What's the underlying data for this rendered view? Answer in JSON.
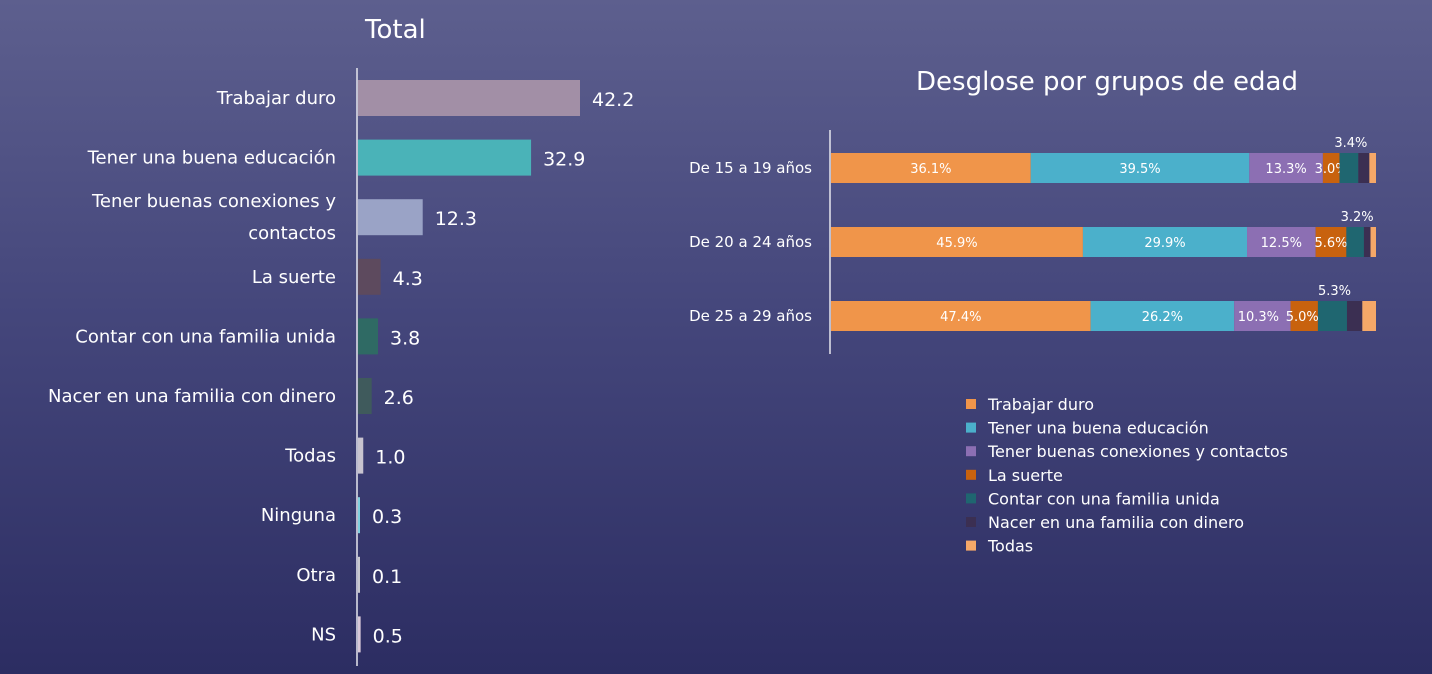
{
  "chart_data": [
    {
      "type": "bar",
      "orientation": "horizontal",
      "title": "Total",
      "categories": [
        [
          "Trabajar duro"
        ],
        [
          "Tener una buena educación"
        ],
        [
          "Tener buenas conexiones y",
          "contactos"
        ],
        [
          "La suerte"
        ],
        [
          "Contar con una familia unida"
        ],
        [
          "Nacer en una familia con dinero"
        ],
        [
          "Todas"
        ],
        [
          "Ninguna"
        ],
        [
          "Otra"
        ],
        [
          "NS"
        ]
      ],
      "values": [
        42.2,
        32.9,
        12.3,
        4.3,
        3.8,
        2.6,
        1.0,
        0.3,
        0.1,
        0.5
      ],
      "value_labels": [
        "42.2",
        "32.9",
        "12.3",
        "4.3",
        "3.8",
        "2.6",
        "1.0",
        "0.3",
        "0.1",
        "0.5"
      ],
      "colors": [
        "#a28fa6",
        "#4ab3b8",
        "#9aa3c6",
        "#5d4a5e",
        "#2f6a64",
        "#3f5a5c",
        "#c8c4cf",
        "#7fd0df",
        "#c8c8cf",
        "#d8c8d8"
      ],
      "xlim": [
        0,
        50
      ],
      "grid": false
    },
    {
      "type": "bar",
      "orientation": "horizontal",
      "stacked": true,
      "title": "Desglose por grupos de edad",
      "categories": [
        "De 15 a 19 años",
        "De 20 a 24 años",
        "De 25 a 29 años"
      ],
      "series": [
        {
          "name": "Trabajar duro",
          "color": "#f0954a",
          "values": [
            36.1,
            45.9,
            47.4
          ],
          "labels": [
            "36.1%",
            "45.9%",
            "47.4%"
          ]
        },
        {
          "name": "Tener una buena educación",
          "color": "#4bb0cb",
          "values": [
            39.5,
            29.9,
            26.2
          ],
          "labels": [
            "39.5%",
            "29.9%",
            "26.2%"
          ]
        },
        {
          "name": "Tener buenas conexiones y contactos",
          "color": "#8c6fb3",
          "values": [
            13.3,
            12.5,
            10.3
          ],
          "labels": [
            "13.3%",
            "12.5%",
            "10.3%"
          ]
        },
        {
          "name": "La suerte",
          "color": "#c8620e",
          "values": [
            3.0,
            5.6,
            5.0
          ],
          "labels": [
            "3.0%",
            "5.6%",
            "5.0%"
          ]
        },
        {
          "name": "Contar con una familia unida",
          "color": "#1f6670",
          "values": [
            3.4,
            3.2,
            5.3
          ],
          "labels": [
            "3.4%",
            "3.2%",
            "5.3%"
          ]
        },
        {
          "name": "Nacer en una familia con dinero",
          "color": "#3b2f52",
          "values": [
            2.0,
            1.2,
            2.8
          ],
          "labels": [
            "",
            "",
            ""
          ]
        },
        {
          "name": "Todas",
          "color": "#f5a868",
          "values": [
            1.2,
            1.0,
            2.5
          ],
          "labels": [
            "",
            "",
            ""
          ]
        }
      ],
      "xlim": [
        0,
        100
      ],
      "grid": false,
      "legend_position": "bottom"
    }
  ]
}
